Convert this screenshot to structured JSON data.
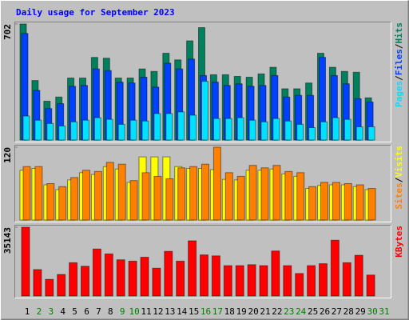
{
  "chart_data": [
    {
      "type": "bar",
      "title": "Daily usage for September 2023",
      "ylim": [
        0,
        702
      ],
      "yticks": [
        702
      ],
      "legend_separator": "/",
      "series": [
        {
          "name": "Hits",
          "color": "#00805c",
          "values": [
            702,
            360,
            235,
            260,
            375,
            375,
            500,
            495,
            375,
            375,
            430,
            415,
            525,
            485,
            600,
            680,
            395,
            395,
            385,
            380,
            400,
            440,
            310,
            310,
            345,
            525,
            440,
            415,
            410,
            255,
            null
          ]
        },
        {
          "name": "Files",
          "color": "#0040ff",
          "values": [
            645,
            300,
            190,
            220,
            325,
            330,
            430,
            420,
            350,
            345,
            380,
            320,
            465,
            430,
            490,
            390,
            350,
            330,
            340,
            325,
            330,
            390,
            260,
            270,
            270,
            500,
            390,
            340,
            250,
            230,
            null
          ]
        },
        {
          "name": "Pages",
          "color": "#00e0ff",
          "values": [
            145,
            120,
            100,
            85,
            110,
            120,
            135,
            125,
            95,
            120,
            115,
            160,
            160,
            170,
            150,
            355,
            130,
            130,
            135,
            120,
            110,
            130,
            115,
            95,
            75,
            110,
            135,
            125,
            80,
            80,
            null
          ]
        }
      ]
    },
    {
      "type": "bar",
      "ylim": [
        0,
        120
      ],
      "yticks": [
        120
      ],
      "legend_separator": "/",
      "series": [
        {
          "name": "Visits",
          "color": "#ffff00",
          "values": [
            82,
            85,
            58,
            50,
            66,
            78,
            75,
            88,
            84,
            62,
            104,
            104,
            104,
            88,
            85,
            85,
            83,
            67,
            66,
            82,
            82,
            84,
            76,
            72,
            52,
            57,
            58,
            58,
            55,
            50,
            null
          ]
        },
        {
          "name": "Sites",
          "color": "#ff8000",
          "values": [
            88,
            88,
            60,
            55,
            70,
            82,
            80,
            95,
            92,
            65,
            78,
            72,
            68,
            86,
            88,
            92,
            120,
            78,
            72,
            90,
            86,
            90,
            80,
            78,
            55,
            62,
            62,
            60,
            58,
            52,
            null
          ]
        }
      ]
    },
    {
      "type": "bar",
      "ylim": [
        0,
        35143
      ],
      "yticks": [
        35143
      ],
      "categories": [
        "1",
        "2",
        "3",
        "4",
        "5",
        "6",
        "7",
        "8",
        "9",
        "10",
        "11",
        "12",
        "13",
        "14",
        "15",
        "16",
        "17",
        "18",
        "19",
        "20",
        "21",
        "22",
        "23",
        "24",
        "25",
        "26",
        "27",
        "28",
        "29",
        "30",
        "31"
      ],
      "category_colors": [
        "#000",
        "#008000",
        "#008000",
        "#000",
        "#000",
        "#000",
        "#000",
        "#000",
        "#008000",
        "#008000",
        "#000",
        "#000",
        "#000",
        "#000",
        "#000",
        "#008000",
        "#008000",
        "#000",
        "#000",
        "#000",
        "#000",
        "#000",
        "#008000",
        "#008000",
        "#000",
        "#000",
        "#000",
        "#000",
        "#000",
        "#008000",
        "#008000"
      ],
      "series": [
        {
          "name": "KBytes",
          "color": "#ff0000",
          "values": [
            35143,
            13500,
            8500,
            11000,
            17000,
            15200,
            24000,
            21500,
            18500,
            17800,
            19800,
            14200,
            22800,
            17800,
            28200,
            21000,
            20500,
            15500,
            15500,
            16000,
            15500,
            23000,
            15500,
            11500,
            15500,
            16500,
            28500,
            17000,
            20800,
            10700,
            null
          ]
        }
      ]
    }
  ]
}
